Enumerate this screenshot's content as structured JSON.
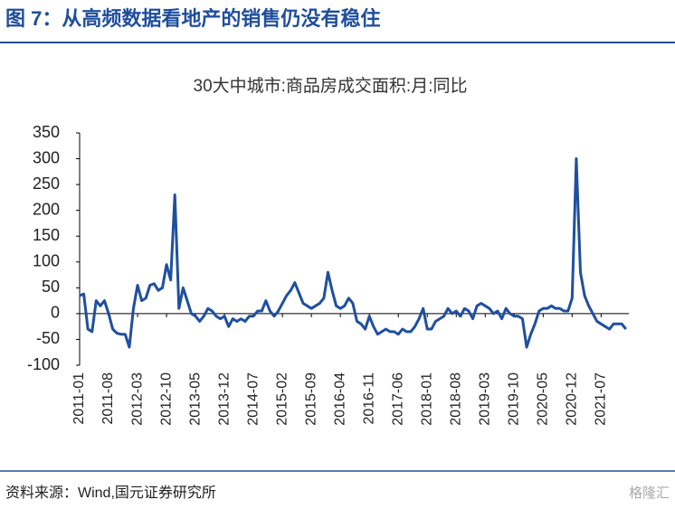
{
  "header_title": "图 7：从高频数据看地产的销售仍没有稳住",
  "source": "资料来源：Wind,国元证券研究所",
  "watermark": "格隆汇",
  "chart_data": {
    "type": "line",
    "title": "30大中城市:商品房成交面积:月:同比",
    "categories": [
      "2011-01",
      null,
      null,
      null,
      null,
      null,
      null,
      "2011-08",
      null,
      null,
      null,
      null,
      null,
      null,
      "2012-03",
      null,
      null,
      null,
      null,
      null,
      null,
      "2012-10",
      null,
      null,
      null,
      null,
      null,
      null,
      "2013-05",
      null,
      null,
      null,
      null,
      null,
      null,
      "2013-12",
      null,
      null,
      null,
      null,
      null,
      null,
      "2014-07",
      null,
      null,
      null,
      null,
      null,
      null,
      "2015-02",
      null,
      null,
      null,
      null,
      null,
      null,
      "2015-09",
      null,
      null,
      null,
      null,
      null,
      null,
      "2016-04",
      null,
      null,
      null,
      null,
      null,
      null,
      "2016-11",
      null,
      null,
      null,
      null,
      null,
      null,
      "2017-06",
      null,
      null,
      null,
      null,
      null,
      null,
      "2018-01",
      null,
      null,
      null,
      null,
      null,
      null,
      "2018-08",
      null,
      null,
      null,
      null,
      null,
      null,
      "2019-03",
      null,
      null,
      null,
      null,
      null,
      null,
      "2019-10",
      null,
      null,
      null,
      null,
      null,
      null,
      "2020-05",
      null,
      null,
      null,
      null,
      null,
      null,
      "2020-12",
      null,
      null,
      null,
      null,
      null,
      null,
      "2021-07",
      null,
      null,
      null,
      null,
      null,
      null
    ],
    "series": [
      {
        "name": "30大中城市:商品房成交面积:月:同比",
        "color": "#1f4fa0",
        "values": [
          35,
          38,
          -30,
          -35,
          25,
          15,
          25,
          0,
          -30,
          -38,
          -40,
          -40,
          -65,
          10,
          55,
          25,
          30,
          55,
          58,
          45,
          50,
          95,
          65,
          230,
          10,
          50,
          25,
          0,
          -5,
          -15,
          -5,
          10,
          5,
          -5,
          -10,
          -5,
          -25,
          -10,
          -15,
          -10,
          -15,
          -5,
          -5,
          5,
          5,
          25,
          5,
          -5,
          5,
          20,
          35,
          45,
          60,
          40,
          20,
          15,
          10,
          15,
          20,
          30,
          80,
          45,
          15,
          10,
          15,
          30,
          20,
          -15,
          -20,
          -30,
          -5,
          -25,
          -40,
          -35,
          -30,
          -35,
          -35,
          -40,
          -30,
          -35,
          -35,
          -25,
          -10,
          10,
          -30,
          -30,
          -15,
          -10,
          -5,
          10,
          0,
          5,
          -5,
          10,
          5,
          -10,
          15,
          20,
          15,
          10,
          0,
          5,
          -10,
          10,
          0,
          -5,
          -5,
          -10,
          -65,
          -40,
          -20,
          5,
          10,
          10,
          15,
          10,
          10,
          5,
          5,
          30,
          300,
          80,
          35,
          15,
          0,
          -15,
          -20,
          -25,
          -30,
          -20,
          -20,
          -20,
          -30
        ]
      }
    ],
    "ylim": [
      -100,
      350
    ],
    "yticks": [
      -100,
      -50,
      0,
      50,
      100,
      150,
      200,
      250,
      300,
      350
    ],
    "legend": false
  }
}
